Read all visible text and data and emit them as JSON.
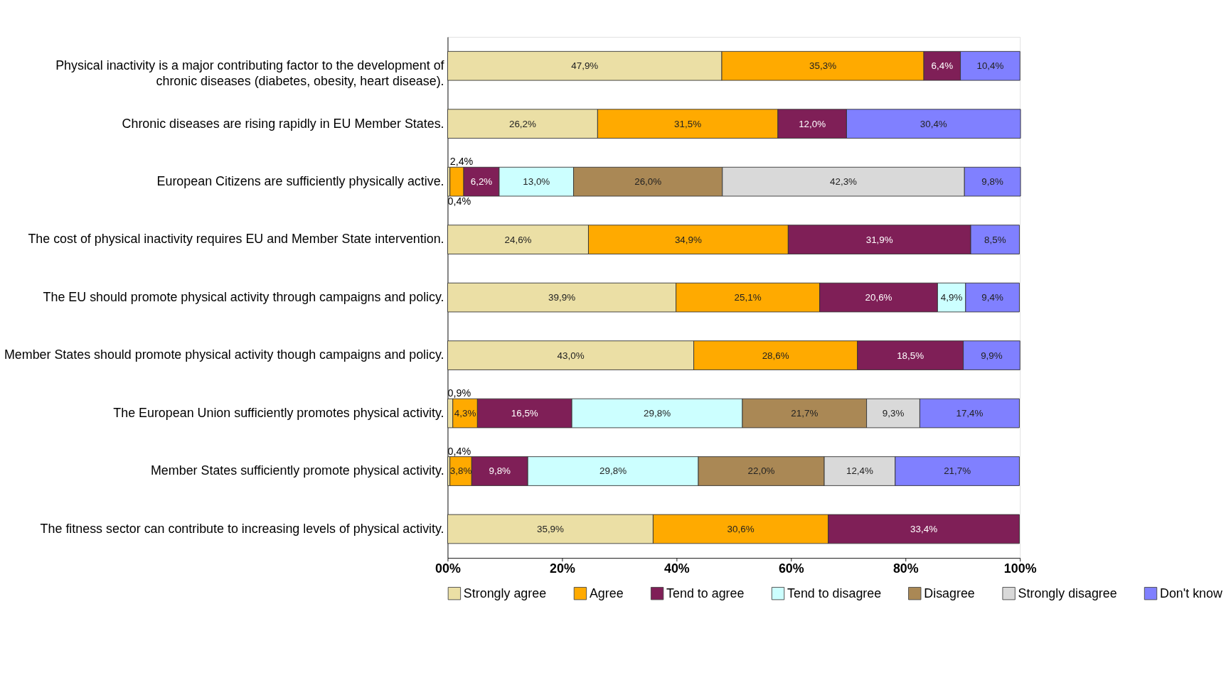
{
  "chart_data": {
    "type": "bar",
    "orientation": "horizontal",
    "stacked": true,
    "categories": [
      "Physical inactivity is a major contributing factor to the development of chronic diseases (diabetes, obesity, heart disease).",
      "Chronic diseases are rising rapidly in EU Member States.",
      "European Citizens are sufficiently physically active.",
      "The cost of physical inactivity requires EU and Member State intervention.",
      "The EU should promote physical activity through campaigns and policy.",
      "Member States should promote physical activity though campaigns and policy.",
      "The European Union sufficiently promotes physical activity.",
      "Member States sufficiently promote physical activity.",
      "The fitness sector can contribute to increasing levels of physical activity."
    ],
    "series": [
      {
        "name": "Strongly agree",
        "color": "#ebdfa5",
        "values": [
          47.9,
          26.2,
          0.4,
          24.6,
          39.9,
          43.0,
          0.9,
          0.4,
          35.9
        ],
        "value_labels": [
          "47,9%",
          "26,2%",
          "0,4%",
          "24,6%",
          "39,9%",
          "43,0%",
          "0,9%",
          "0,4%",
          "35,9%"
        ]
      },
      {
        "name": "Agree",
        "color": "#ffaa00",
        "values": [
          35.3,
          31.5,
          2.4,
          34.9,
          25.1,
          28.6,
          4.3,
          3.8,
          30.6
        ],
        "value_labels": [
          "35,3%",
          "31,5%",
          "2,4%",
          "34,9%",
          "25,1%",
          "28,6%",
          "4,3%",
          "3,8%",
          "30,6%"
        ]
      },
      {
        "name": "Tend to agree",
        "color": "#7f1f57",
        "values": [
          6.4,
          12.0,
          6.2,
          31.9,
          20.6,
          18.5,
          16.5,
          9.8,
          33.4
        ],
        "value_labels": [
          "6,4%",
          "12,0%",
          "6,2%",
          "31,9%",
          "20,6%",
          "18,5%",
          "16,5%",
          "9,8%",
          "33,4%"
        ]
      },
      {
        "name": "Tend to disagree",
        "color": "#ccffff",
        "values": [
          null,
          null,
          13.0,
          null,
          4.9,
          null,
          29.8,
          29.8,
          null
        ],
        "value_labels": [
          null,
          null,
          "13,0%",
          null,
          "4,9%",
          null,
          "29,8%",
          "29,8%",
          null
        ]
      },
      {
        "name": "Disagree",
        "color": "#aa8855",
        "values": [
          null,
          null,
          26.0,
          null,
          null,
          null,
          21.7,
          22.0,
          null
        ],
        "value_labels": [
          null,
          null,
          "26,0%",
          null,
          null,
          null,
          "21,7%",
          "22,0%",
          null
        ]
      },
      {
        "name": "Strongly disagree",
        "color": "#d9d9d9",
        "values": [
          null,
          null,
          42.3,
          null,
          null,
          null,
          9.3,
          12.4,
          null
        ],
        "value_labels": [
          null,
          null,
          "42,3%",
          null,
          null,
          null,
          "9,3%",
          "12,4%",
          null
        ]
      },
      {
        "name": "Don't know",
        "color": "#8080ff",
        "values": [
          10.4,
          30.4,
          9.8,
          8.5,
          9.4,
          9.9,
          17.4,
          21.7,
          null
        ],
        "value_labels": [
          "10,4%",
          "30,4%",
          "9,8%",
          "8,5%",
          "9,4%",
          "9,9%",
          "17,4%",
          "21,7%",
          null
        ]
      }
    ],
    "xlim": [
      0,
      100
    ],
    "xticks": [
      {
        "value": 0,
        "label": "00%"
      },
      {
        "value": 20,
        "label": "20%"
      },
      {
        "value": 40,
        "label": "40%"
      },
      {
        "value": 60,
        "label": "60%"
      },
      {
        "value": 80,
        "label": "80%"
      },
      {
        "value": 100,
        "label": "100%"
      }
    ],
    "grid": false,
    "legend": "bottom"
  }
}
